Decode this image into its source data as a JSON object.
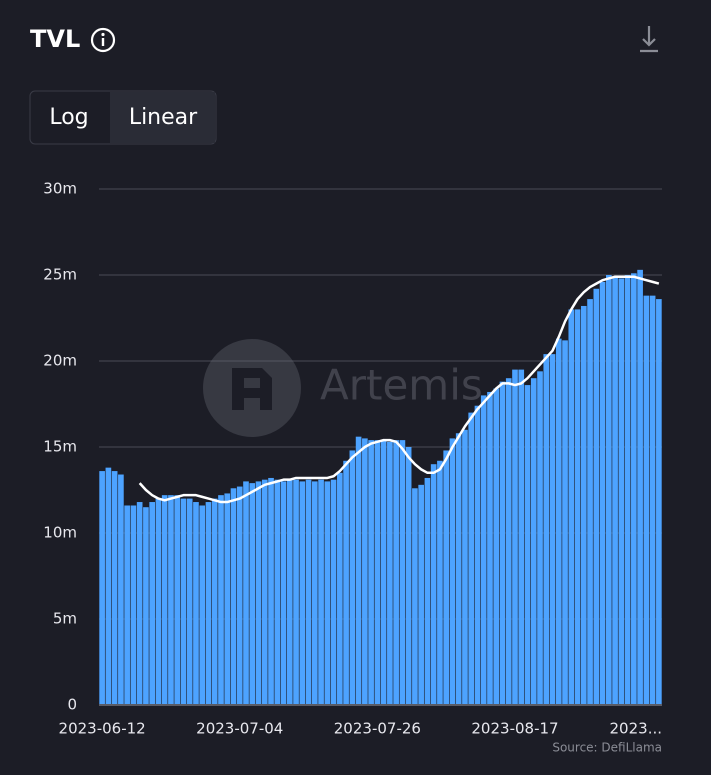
{
  "header": {
    "title": "TVL",
    "buttons": [
      "Log",
      "Linear"
    ],
    "active": "Linear"
  },
  "chart_data": {
    "type": "bar_line",
    "watermark": "Artemis",
    "source": "Source: DefiLlama",
    "categories": [
      "2023-06-12",
      null,
      null,
      null,
      null,
      null,
      null,
      null,
      null,
      null,
      null,
      null,
      null,
      null,
      null,
      null,
      null,
      null,
      null,
      null,
      null,
      null,
      "2023-07-04",
      null,
      null,
      null,
      null,
      null,
      null,
      null,
      null,
      null,
      null,
      null,
      null,
      null,
      null,
      null,
      null,
      null,
      null,
      null,
      null,
      null,
      "2023-07-26",
      null,
      null,
      null,
      null,
      null,
      null,
      null,
      null,
      null,
      null,
      null,
      null,
      null,
      null,
      null,
      null,
      null,
      null,
      null,
      null,
      null,
      "2023-08-17",
      null,
      null,
      null,
      null,
      null,
      null,
      null,
      null,
      null,
      null,
      null,
      null,
      null,
      null,
      null,
      null,
      null,
      null,
      null,
      null,
      null,
      "2023...",
      null
    ],
    "series": [
      {
        "name": "TVL",
        "type": "bar",
        "color": "#4da3ff",
        "values": [
          13.6,
          13.8,
          13.6,
          13.4,
          11.6,
          11.6,
          11.8,
          11.5,
          11.8,
          12.0,
          12.2,
          12.2,
          12.2,
          12.0,
          12.0,
          11.8,
          11.6,
          11.8,
          12.0,
          12.2,
          12.3,
          12.6,
          12.7,
          13.0,
          12.9,
          13.0,
          13.1,
          13.2,
          13.1,
          13.0,
          13.1,
          13.1,
          13.0,
          13.1,
          13.0,
          13.1,
          13.0,
          13.1,
          13.5,
          14.2,
          14.8,
          15.6,
          15.5,
          15.4,
          15.4,
          15.4,
          15.3,
          15.4,
          15.4,
          15.0,
          12.6,
          12.8,
          13.2,
          14.0,
          14.2,
          14.8,
          15.5,
          15.8,
          16.0,
          17.0,
          17.4,
          18.0,
          18.2,
          18.4,
          18.8,
          19.0,
          19.5,
          19.5,
          18.6,
          19.0,
          19.4,
          20.4,
          20.4,
          21.3,
          21.2,
          23.0,
          23.0,
          23.2,
          23.6,
          24.2,
          24.6,
          25.0,
          24.9,
          24.8,
          25.0,
          25.1,
          25.3,
          23.8,
          23.8,
          23.6
        ]
      },
      {
        "name": "Moving average",
        "type": "line",
        "color": "#ffffff",
        "values": [
          null,
          null,
          null,
          null,
          null,
          null,
          12.9,
          12.5,
          12.2,
          12.0,
          11.9,
          12.0,
          12.1,
          12.2,
          12.2,
          12.2,
          12.1,
          12.0,
          11.9,
          11.8,
          11.8,
          11.9,
          12.0,
          12.2,
          12.4,
          12.6,
          12.8,
          12.9,
          13.0,
          13.1,
          13.1,
          13.2,
          13.2,
          13.2,
          13.2,
          13.2,
          13.2,
          13.3,
          13.6,
          14.0,
          14.4,
          14.7,
          15.0,
          15.2,
          15.3,
          15.4,
          15.4,
          15.3,
          14.9,
          14.4,
          14.0,
          13.7,
          13.5,
          13.5,
          13.7,
          14.3,
          15.0,
          15.6,
          16.2,
          16.7,
          17.2,
          17.6,
          18.0,
          18.4,
          18.7,
          18.7,
          18.6,
          18.7,
          19.0,
          19.4,
          19.8,
          20.2,
          20.6,
          21.4,
          22.3,
          23.0,
          23.6,
          24.0,
          24.3,
          24.5,
          24.7,
          24.8,
          24.9,
          24.9,
          24.9,
          24.9,
          24.8,
          24.7,
          24.6,
          24.5
        ]
      }
    ],
    "ylim": [
      0,
      30
    ],
    "yticks": [
      0,
      {
        "value": 5,
        "label": "5m"
      },
      {
        "value": 10,
        "label": "10m"
      },
      {
        "value": 15,
        "label": "15m"
      },
      {
        "value": 20,
        "label": "20m"
      },
      {
        "value": 25,
        "label": "25m"
      },
      {
        "value": 30,
        "label": "30m"
      }
    ],
    "grid": true
  }
}
